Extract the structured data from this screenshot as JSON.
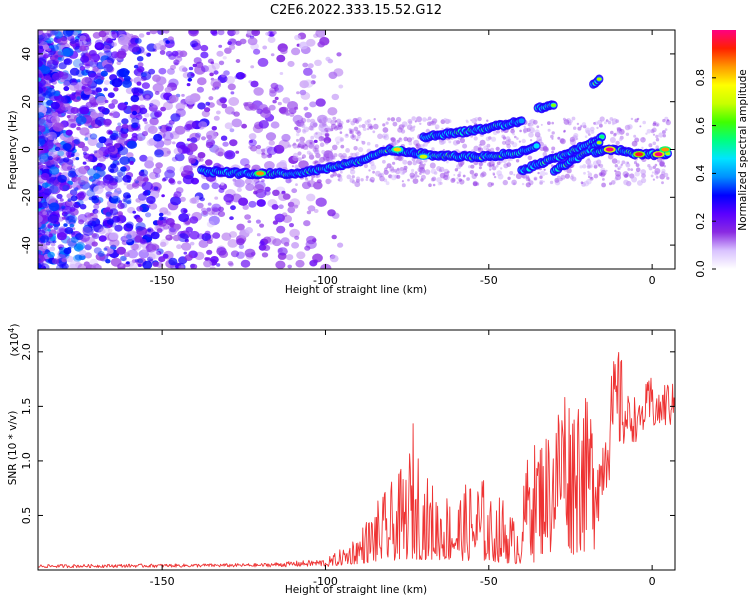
{
  "title": "C2E6.2022.333.15.52.G12",
  "chart_data": [
    {
      "type": "heatmap",
      "xlabel": "Height of straight line (km)",
      "ylabel": "Frequency (Hz)",
      "xlim": [
        -188,
        7
      ],
      "ylim": [
        -50,
        50
      ],
      "xticks": [
        -150,
        -100,
        -50,
        0
      ],
      "yticks": [
        -40,
        -20,
        0,
        20,
        40
      ],
      "grid": false,
      "colorbar": {
        "label": "Normalized spectral amplitude",
        "range": [
          0,
          1
        ],
        "ticks": [
          "0.0",
          "0.2",
          "0.4",
          "0.6",
          "0.8"
        ],
        "colors": [
          "#ffffff",
          "#d9c2ff",
          "#8a2be2",
          "#5a00ff",
          "#0000ff",
          "#0090ff",
          "#00e5ff",
          "#00ff80",
          "#40ff00",
          "#c8ff00",
          "#ffff00",
          "#ff9900",
          "#ff2000",
          "#ff0080"
        ]
      },
      "bands": [
        {
          "x": [
            -138,
            -125,
            -110,
            -100,
            -90,
            -80,
            -70,
            -60,
            -50,
            -40,
            -35
          ],
          "y": [
            -9,
            -10,
            -10,
            -8,
            -5,
            0,
            -2,
            -3,
            -3,
            -1,
            2
          ]
        },
        {
          "x": [
            -40,
            -35,
            -28,
            -20,
            -15
          ],
          "y": [
            -9,
            -6,
            -3,
            2,
            5
          ]
        },
        {
          "x": [
            -30,
            -25,
            -20,
            -16
          ],
          "y": [
            -9,
            -5,
            -1,
            3
          ]
        },
        {
          "x": [
            -70,
            -60,
            -50,
            -40
          ],
          "y": [
            5,
            7,
            9,
            12
          ]
        },
        {
          "x": [
            -35,
            -30
          ],
          "y": [
            17,
            19
          ]
        },
        {
          "x": [
            -18,
            -16
          ],
          "y": [
            27,
            30
          ]
        },
        {
          "x": [
            -18,
            -10,
            -5,
            5
          ],
          "y": [
            -1,
            0,
            -2,
            -2
          ]
        }
      ],
      "hotspots": [
        {
          "x": -120,
          "y": -10,
          "level": 0.75
        },
        {
          "x": -78,
          "y": 0,
          "level": 0.7
        },
        {
          "x": -70,
          "y": -3,
          "level": 0.6
        },
        {
          "x": -13,
          "y": 0,
          "level": 0.9
        },
        {
          "x": -4,
          "y": -2,
          "level": 0.85
        },
        {
          "x": 2,
          "y": -2,
          "level": 0.9
        },
        {
          "x": 4,
          "y": 0,
          "level": 0.75
        }
      ]
    },
    {
      "type": "line",
      "xlabel": "Height of straight line (km)",
      "ylabel": "SNR (10 * v/v)",
      "yscale_label": "(x10",
      "yscale_exp": "4",
      "yscale_close": ")",
      "xlim": [
        -188,
        7
      ],
      "ylim": [
        0,
        2.2
      ],
      "xticks": [
        -150,
        -100,
        -50,
        0
      ],
      "yticks": [
        "0.5",
        "1.0",
        "1.5",
        "2.0"
      ],
      "color": "#ee3333",
      "series": [
        {
          "envelope": {
            "x": [
              -188,
              -120,
              -100,
              -95,
              -90,
              -85,
              -80,
              -75,
              -73,
              -70,
              -65,
              -60,
              -55,
              -52,
              -50,
              -45,
              -42,
              -40,
              -38,
              -35,
              -30,
              -27,
              -25,
              -22,
              -20,
              -18,
              -16,
              -14,
              -12,
              -10,
              -8,
              -6,
              -4,
              -2,
              0,
              2,
              4,
              7
            ],
            "y": [
              0.05,
              0.06,
              0.1,
              0.2,
              0.35,
              0.6,
              0.8,
              1.0,
              1.42,
              0.9,
              0.75,
              0.7,
              0.85,
              0.9,
              0.65,
              0.7,
              0.45,
              0.6,
              1.1,
              1.2,
              1.35,
              1.85,
              1.55,
              1.75,
              1.55,
              1.5,
              1.1,
              1.55,
              1.9,
              2.1,
              1.6,
              1.65,
              1.5,
              1.7,
              1.8,
              1.6,
              1.75,
              1.7
            ]
          },
          "floor": {
            "x": [
              -188,
              -100,
              -75,
              -50,
              -40,
              -30,
              -18,
              -16,
              -12,
              -8,
              -4,
              0,
              7
            ],
            "y": [
              0.02,
              0.03,
              0.1,
              0.08,
              0.05,
              0.1,
              0.12,
              0.5,
              0.9,
              1.1,
              1.2,
              1.25,
              1.3
            ]
          }
        }
      ]
    }
  ]
}
